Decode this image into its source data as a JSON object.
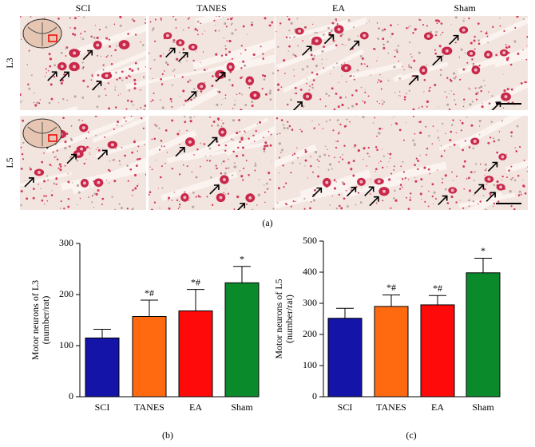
{
  "panel_a": {
    "columns": [
      "SCI",
      "TANES",
      "EA",
      "Sham"
    ],
    "rows": [
      "L3",
      "L5"
    ],
    "caption": "(a)"
  },
  "chart_data": [
    {
      "type": "bar",
      "caption": "(b)",
      "ylabel": [
        "Motor neurons of L3",
        "(number/rat)"
      ],
      "categories": [
        "SCI",
        "TANES",
        "EA",
        "Sham"
      ],
      "values": [
        115,
        157,
        168,
        223
      ],
      "errors": [
        17,
        32,
        42,
        32
      ],
      "annotations": [
        null,
        "*#",
        "*#",
        "*"
      ],
      "colors": [
        "#1414a8",
        "#ff6a10",
        "#ff0a0a",
        "#0b8a2c"
      ],
      "ylim": [
        0,
        300
      ],
      "yticks": [
        0,
        100,
        200,
        300
      ]
    },
    {
      "type": "bar",
      "caption": "(c)",
      "ylabel": [
        "Motor neurons of L5",
        "(number/rat)"
      ],
      "categories": [
        "SCI",
        "TANES",
        "EA",
        "Sham"
      ],
      "values": [
        252,
        290,
        295,
        398
      ],
      "errors": [
        32,
        37,
        30,
        47
      ],
      "annotations": [
        null,
        "*#",
        "*#",
        "*"
      ],
      "colors": [
        "#1414a8",
        "#ff6a10",
        "#ff0a0a",
        "#0b8a2c"
      ],
      "ylim": [
        0,
        500
      ],
      "yticks": [
        0,
        100,
        200,
        300,
        400,
        500
      ]
    }
  ]
}
